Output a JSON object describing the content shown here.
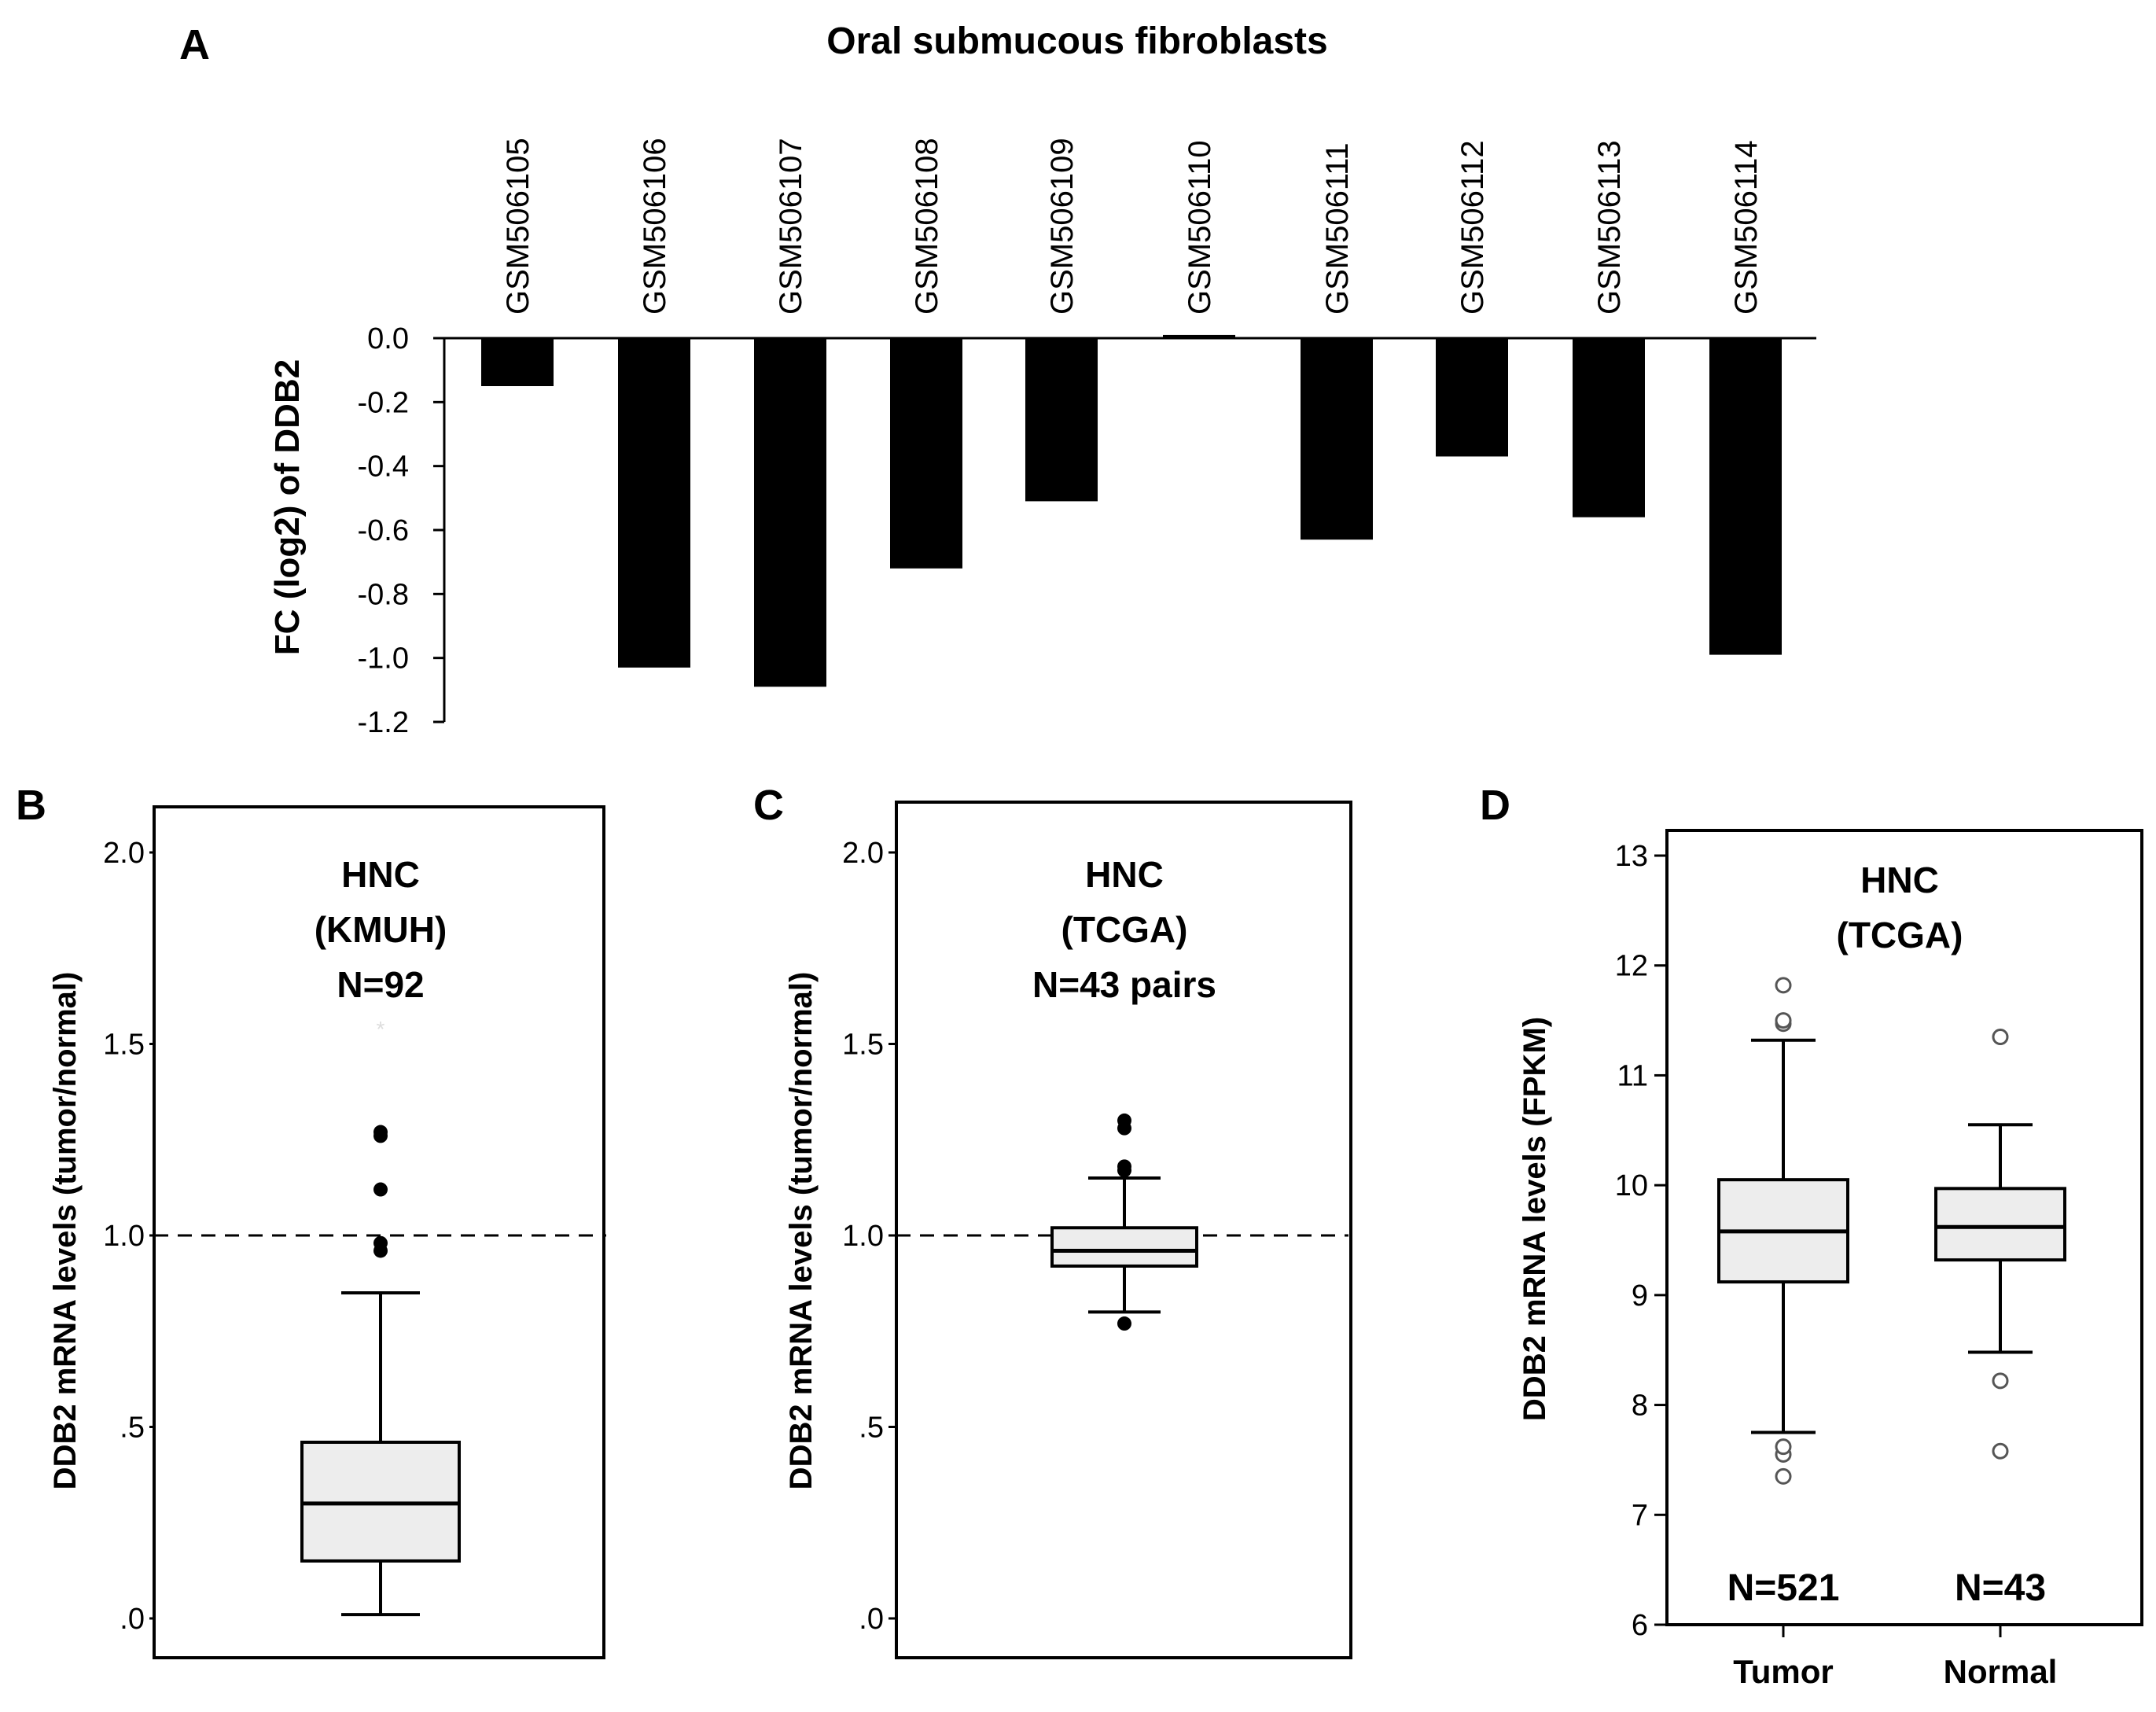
{
  "chart_data": [
    {
      "panel": "A",
      "type": "bar",
      "title": "Oral submucous fibroblasts",
      "ylabel": "FC (log2) of DDB2",
      "xlabel": "",
      "categories": [
        "GSM506105",
        "GSM506106",
        "GSM506107",
        "GSM506108",
        "GSM506109",
        "GSM506110",
        "GSM506111",
        "GSM506112",
        "GSM506113",
        "GSM506114"
      ],
      "values": [
        -0.15,
        -1.03,
        -1.09,
        -0.72,
        -0.51,
        0.01,
        -0.63,
        -0.37,
        -0.56,
        -0.99
      ],
      "ylim": [
        -1.2,
        0.0
      ],
      "yticks": [
        "0.0",
        "-0.2",
        "-0.4",
        "-0.6",
        "-0.8",
        "-1.0",
        "-1.2"
      ],
      "ytick_values": [
        0.0,
        -0.2,
        -0.4,
        -0.6,
        -0.8,
        -1.0,
        -1.2
      ],
      "color": "#000000"
    },
    {
      "panel": "B",
      "type": "box",
      "ylabel": "DDB2 mRNA levels (tumor/normal)",
      "annotation": [
        "HNC",
        "(KMUH)",
        "N=92"
      ],
      "ylim": [
        0,
        2.1
      ],
      "yticks": [
        ".0",
        ".5",
        "1.0",
        "1.5",
        "2.0"
      ],
      "ytick_values": [
        0,
        0.5,
        1.0,
        1.5,
        2.0
      ],
      "reference_line": 1.0,
      "box": {
        "whisker_low": 0.01,
        "q1": 0.15,
        "median": 0.3,
        "q3": 0.46,
        "whisker_high": 0.85
      },
      "outliers": [
        0.96,
        0.98,
        1.12,
        1.26,
        1.27
      ],
      "extremes": [
        1.54
      ],
      "fill": "#ededed"
    },
    {
      "panel": "C",
      "type": "box",
      "ylabel": "DDB2 mRNA levels (tumor/normal)",
      "annotation": [
        "HNC",
        "(TCGA)",
        "N=43 pairs"
      ],
      "ylim": [
        0,
        2.1
      ],
      "yticks": [
        ".0",
        ".5",
        "1.0",
        "1.5",
        "2.0"
      ],
      "ytick_values": [
        0,
        0.5,
        1.0,
        1.5,
        2.0
      ],
      "reference_line": 1.0,
      "box": {
        "whisker_low": 0.8,
        "q1": 0.92,
        "median": 0.96,
        "q3": 1.02,
        "whisker_high": 1.15
      },
      "outliers": [
        0.77,
        1.17,
        1.18,
        1.28,
        1.3
      ],
      "fill": "#ededed"
    },
    {
      "panel": "D",
      "type": "box",
      "ylabel": "DDB2 mRNA levels (FPKM)",
      "annotation": [
        "HNC",
        "(TCGA)"
      ],
      "ylim": [
        6,
        13
      ],
      "yticks": [
        "6",
        "7",
        "8",
        "9",
        "10",
        "11",
        "12",
        "13"
      ],
      "ytick_values": [
        6,
        7,
        8,
        9,
        10,
        11,
        12,
        13
      ],
      "categories": [
        "Tumor",
        "Normal"
      ],
      "counts": [
        "N=521",
        "N=43"
      ],
      "boxes": [
        {
          "whisker_low": 7.75,
          "q1": 9.12,
          "median": 9.58,
          "q3": 10.05,
          "whisker_high": 11.32,
          "outliers": [
            7.35,
            7.55,
            7.62,
            11.47,
            11.5,
            11.82
          ]
        },
        {
          "whisker_low": 8.48,
          "q1": 9.32,
          "median": 9.62,
          "q3": 9.97,
          "whisker_high": 10.55,
          "outliers": [
            7.58,
            8.22,
            11.35
          ]
        }
      ],
      "fill": "#ededed"
    }
  ]
}
